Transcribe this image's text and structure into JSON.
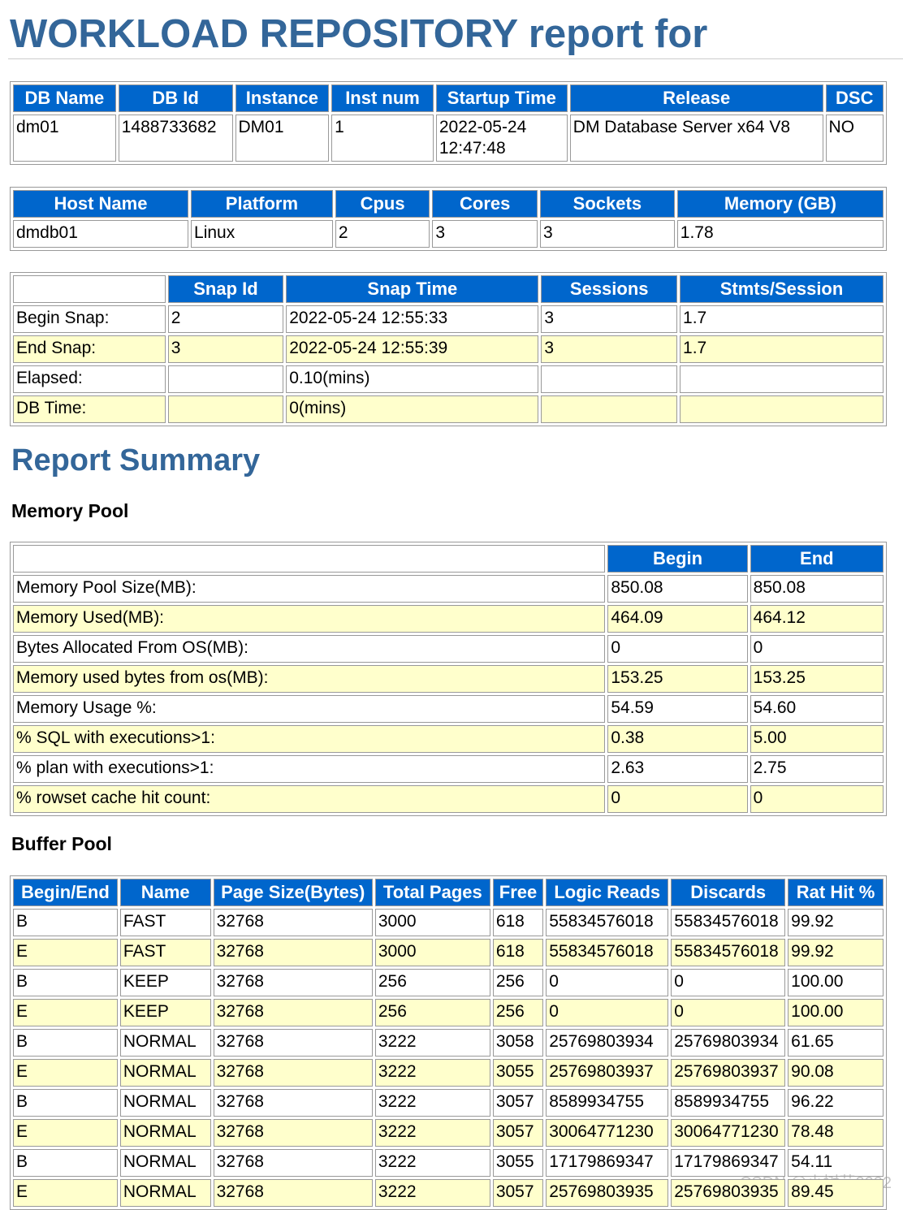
{
  "header": {
    "title": "WORKLOAD REPOSITORY report for"
  },
  "db_table": {
    "columns": [
      "DB Name",
      "DB Id",
      "Instance",
      "Inst num",
      "Startup Time",
      "Release",
      "DSC"
    ],
    "rows": [
      [
        "dm01",
        "1488733682",
        "DM01",
        "1",
        "2022-05-24 12:47:48",
        "DM Database Server x64 V8",
        "NO"
      ]
    ]
  },
  "host_table": {
    "columns": [
      "Host Name",
      "Platform",
      "Cpus",
      "Cores",
      "Sockets",
      "Memory (GB)"
    ],
    "rows": [
      [
        "dmdb01",
        "Linux",
        "2",
        "3",
        "3",
        "1.78"
      ]
    ]
  },
  "snap_table": {
    "columns": [
      "Snap Id",
      "Snap Time",
      "Sessions",
      "Stmts/Session"
    ],
    "rows": [
      [
        "Begin Snap:",
        "2",
        "2022-05-24 12:55:33",
        "3",
        "1.7"
      ],
      [
        "End Snap:",
        "3",
        "2022-05-24 12:55:39",
        "3",
        "1.7"
      ],
      [
        "Elapsed:",
        null,
        "0.10(mins)",
        null,
        null
      ],
      [
        "DB Time:",
        null,
        "0(mins)",
        null,
        null
      ]
    ]
  },
  "summary": {
    "title": "Report Summary"
  },
  "memory_pool": {
    "title": "Memory Pool",
    "columns": [
      "Begin",
      "End"
    ],
    "rows": [
      [
        "Memory Pool Size(MB):",
        "850.08",
        "850.08"
      ],
      [
        "Memory Used(MB):",
        "464.09",
        "464.12"
      ],
      [
        "Bytes Allocated From OS(MB):",
        "0",
        "0"
      ],
      [
        "Memory used bytes from os(MB):",
        "153.25",
        "153.25"
      ],
      [
        "Memory Usage %:",
        "54.59",
        "54.60"
      ],
      [
        "% SQL with executions>1:",
        "0.38",
        "5.00"
      ],
      [
        "% plan with executions>1:",
        "2.63",
        "2.75"
      ],
      [
        "% rowset cache hit count:",
        "0",
        "0"
      ]
    ]
  },
  "buffer_pool": {
    "title": "Buffer Pool",
    "columns": [
      "Begin/End",
      "Name",
      "Page Size(Bytes)",
      "Total Pages",
      "Free",
      "Logic Reads",
      "Discards",
      "Rat Hit %"
    ],
    "rows": [
      [
        "B",
        "FAST",
        "32768",
        "3000",
        "618",
        "55834576018",
        "55834576018",
        "99.92"
      ],
      [
        "E",
        "FAST",
        "32768",
        "3000",
        "618",
        "55834576018",
        "55834576018",
        "99.92"
      ],
      [
        "B",
        "KEEP",
        "32768",
        "256",
        "256",
        "0",
        "0",
        "100.00"
      ],
      [
        "E",
        "KEEP",
        "32768",
        "256",
        "256",
        "0",
        "0",
        "100.00"
      ],
      [
        "B",
        "NORMAL",
        "32768",
        "3222",
        "3058",
        "25769803934",
        "25769803934",
        "61.65"
      ],
      [
        "E",
        "NORMAL",
        "32768",
        "3222",
        "3055",
        "25769803937",
        "25769803937",
        "90.08"
      ],
      [
        "B",
        "NORMAL",
        "32768",
        "3222",
        "3057",
        "8589934755",
        "8589934755",
        "96.22"
      ],
      [
        "E",
        "NORMAL",
        "32768",
        "3222",
        "3057",
        "30064771230",
        "30064771230",
        "78.48"
      ],
      [
        "B",
        "NORMAL",
        "32768",
        "3222",
        "3055",
        "17179869347",
        "17179869347",
        "54.11"
      ],
      [
        "E",
        "NORMAL",
        "32768",
        "3222",
        "3057",
        "25769803935",
        "25769803935",
        "89.45"
      ]
    ]
  },
  "watermark": "CSDN @小树芽2022"
}
